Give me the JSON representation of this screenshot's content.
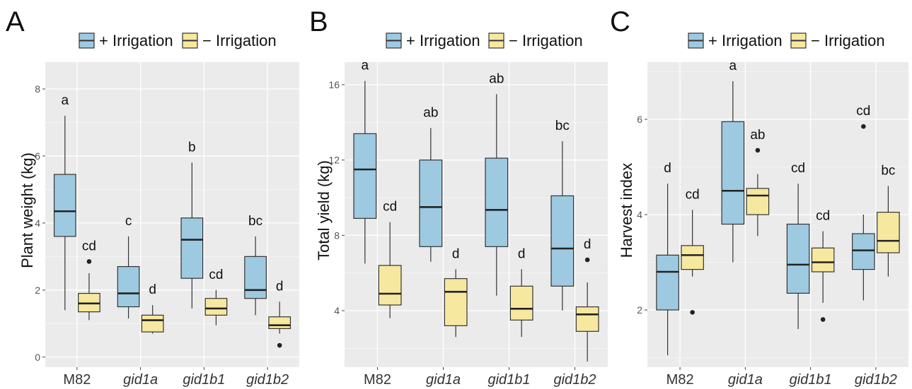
{
  "legend": {
    "irrigated": "+ Irrigation",
    "non_irrigated": "− Irrigation"
  },
  "colors": {
    "irrigated_fill": "#9ecae1",
    "non_irrigated_fill": "#f7e8a0",
    "panel_bg": "#ebebeb",
    "grid": "#ffffff"
  },
  "chart_data": [
    {
      "type": "box",
      "panel": "A",
      "ylabel": "Plant weight (kg)",
      "ylim": [
        -0.3,
        8.8
      ],
      "yticks": [
        0,
        2,
        4,
        6,
        8
      ],
      "categories": [
        "M82",
        "gid1a",
        "gid1b1",
        "gid1b2"
      ],
      "categories_italic": [
        false,
        true,
        true,
        true
      ],
      "grid": true,
      "legend_position": "top",
      "series": [
        {
          "name": "+ Irrigation",
          "boxes": [
            {
              "lower_whisker": 1.4,
              "q1": 3.6,
              "median": 4.35,
              "q3": 5.45,
              "upper_whisker": 7.2,
              "outliers": [],
              "letter": "a"
            },
            {
              "lower_whisker": 1.15,
              "q1": 1.5,
              "median": 1.9,
              "q3": 2.7,
              "upper_whisker": 3.6,
              "outliers": [],
              "letter": "c"
            },
            {
              "lower_whisker": 1.45,
              "q1": 2.35,
              "median": 3.5,
              "q3": 4.15,
              "upper_whisker": 5.8,
              "outliers": [],
              "letter": "b"
            },
            {
              "lower_whisker": 1.25,
              "q1": 1.75,
              "median": 2.0,
              "q3": 3.0,
              "upper_whisker": 3.6,
              "outliers": [],
              "letter": "bc"
            }
          ]
        },
        {
          "name": "− Irrigation",
          "boxes": [
            {
              "lower_whisker": 1.1,
              "q1": 1.35,
              "median": 1.6,
              "q3": 1.9,
              "upper_whisker": 2.5,
              "outliers": [
                2.85
              ],
              "letter": "cd"
            },
            {
              "lower_whisker": 0.7,
              "q1": 0.75,
              "median": 1.1,
              "q3": 1.25,
              "upper_whisker": 1.55,
              "outliers": [],
              "letter": "d"
            },
            {
              "lower_whisker": 0.95,
              "q1": 1.25,
              "median": 1.45,
              "q3": 1.75,
              "upper_whisker": 2.0,
              "outliers": [],
              "letter": "cd"
            },
            {
              "lower_whisker": 0.7,
              "q1": 0.85,
              "median": 0.95,
              "q3": 1.2,
              "upper_whisker": 1.65,
              "outliers": [
                0.35
              ],
              "letter": "d"
            }
          ]
        }
      ]
    },
    {
      "type": "box",
      "panel": "B",
      "ylabel": "Total yield (kg)",
      "ylim": [
        1.0,
        17.2
      ],
      "yticks": [
        4,
        8,
        12,
        16
      ],
      "categories": [
        "M82",
        "gid1a",
        "gid1b1",
        "gid1b2"
      ],
      "categories_italic": [
        false,
        true,
        true,
        true
      ],
      "grid": true,
      "legend_position": "top",
      "series": [
        {
          "name": "+ Irrigation",
          "boxes": [
            {
              "lower_whisker": 6.5,
              "q1": 8.9,
              "median": 11.5,
              "q3": 13.4,
              "upper_whisker": 16.2,
              "outliers": [],
              "letter": "a"
            },
            {
              "lower_whisker": 6.6,
              "q1": 7.4,
              "median": 9.5,
              "q3": 12.0,
              "upper_whisker": 13.7,
              "outliers": [],
              "letter": "ab"
            },
            {
              "lower_whisker": 4.8,
              "q1": 7.4,
              "median": 9.35,
              "q3": 12.1,
              "upper_whisker": 15.5,
              "outliers": [],
              "letter": "ab"
            },
            {
              "lower_whisker": 4.0,
              "q1": 5.3,
              "median": 7.3,
              "q3": 10.1,
              "upper_whisker": 13.0,
              "outliers": [],
              "letter": "bc"
            }
          ]
        },
        {
          "name": "− Irrigation",
          "boxes": [
            {
              "lower_whisker": 3.6,
              "q1": 4.3,
              "median": 4.9,
              "q3": 6.4,
              "upper_whisker": 8.7,
              "outliers": [],
              "letter": "cd"
            },
            {
              "lower_whisker": 2.6,
              "q1": 3.2,
              "median": 5.0,
              "q3": 5.7,
              "upper_whisker": 6.2,
              "outliers": [],
              "letter": "d"
            },
            {
              "lower_whisker": 2.6,
              "q1": 3.5,
              "median": 4.1,
              "q3": 5.3,
              "upper_whisker": 6.2,
              "outliers": [],
              "letter": "d"
            },
            {
              "lower_whisker": 1.3,
              "q1": 2.9,
              "median": 3.8,
              "q3": 4.2,
              "upper_whisker": 5.5,
              "outliers": [
                6.7
              ],
              "letter": "d"
            }
          ]
        }
      ]
    },
    {
      "type": "box",
      "panel": "C",
      "ylabel": "Harvest index",
      "ylim": [
        0.8,
        7.2
      ],
      "yticks": [
        2,
        4,
        6
      ],
      "categories": [
        "M82",
        "gid1a",
        "gid1b1",
        "gid1b2"
      ],
      "categories_italic": [
        false,
        true,
        true,
        true
      ],
      "grid": true,
      "legend_position": "top",
      "series": [
        {
          "name": "+ Irrigation",
          "boxes": [
            {
              "lower_whisker": 1.05,
              "q1": 2.0,
              "median": 2.8,
              "q3": 3.15,
              "upper_whisker": 4.65,
              "outliers": [],
              "letter": "d"
            },
            {
              "lower_whisker": 3.0,
              "q1": 3.8,
              "median": 4.5,
              "q3": 5.95,
              "upper_whisker": 6.8,
              "outliers": [],
              "letter": "a"
            },
            {
              "lower_whisker": 1.6,
              "q1": 2.35,
              "median": 2.95,
              "q3": 3.8,
              "upper_whisker": 4.65,
              "outliers": [],
              "letter": "cd"
            },
            {
              "lower_whisker": 2.2,
              "q1": 2.85,
              "median": 3.25,
              "q3": 3.6,
              "upper_whisker": 4.0,
              "outliers": [
                5.85
              ],
              "letter": "cd"
            }
          ]
        },
        {
          "name": "− Irrigation",
          "boxes": [
            {
              "lower_whisker": 2.7,
              "q1": 2.85,
              "median": 3.15,
              "q3": 3.35,
              "upper_whisker": 4.1,
              "outliers": [
                1.95
              ],
              "letter": "cd"
            },
            {
              "lower_whisker": 3.55,
              "q1": 4.0,
              "median": 4.4,
              "q3": 4.55,
              "upper_whisker": 4.85,
              "outliers": [
                5.35
              ],
              "letter": "ab"
            },
            {
              "lower_whisker": 2.15,
              "q1": 2.8,
              "median": 3.0,
              "q3": 3.3,
              "upper_whisker": 3.65,
              "outliers": [
                1.8
              ],
              "letter": "cd"
            },
            {
              "lower_whisker": 2.7,
              "q1": 3.2,
              "median": 3.45,
              "q3": 4.05,
              "upper_whisker": 4.6,
              "outliers": [],
              "letter": "bc"
            }
          ]
        }
      ]
    }
  ]
}
